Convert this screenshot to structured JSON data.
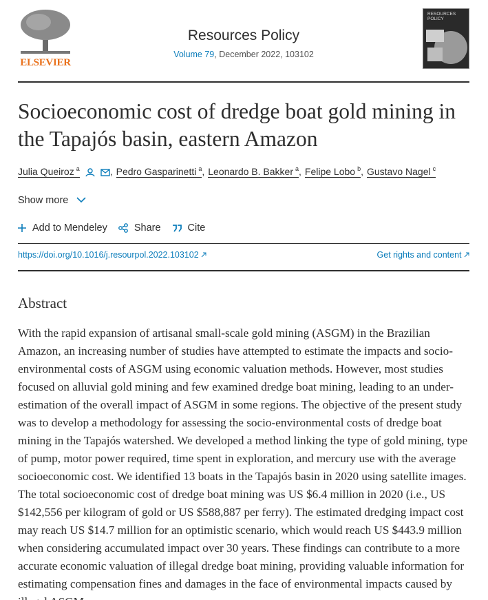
{
  "header": {
    "publisher": "ELSEVIER",
    "journal": "Resources Policy",
    "volume": "Volume 79",
    "issue_info": ", December 2022, 103102",
    "cover_title": "RESOURCES POLICY"
  },
  "article": {
    "title": "Socioeconomic cost of dredge boat gold mining in the Tapajós basin, eastern Amazon",
    "author_separator": ",",
    "authors": [
      {
        "name": "Julia Queiroz",
        "affiliation": "a"
      },
      {
        "name": "Pedro Gasparinetti",
        "affiliation": "a"
      },
      {
        "name": "Leonardo B. Bakker",
        "affiliation": "a"
      },
      {
        "name": "Felipe Lobo",
        "affiliation": "b"
      },
      {
        "name": "Gustavo Nagel",
        "affiliation": "c"
      }
    ],
    "show_more": "Show more",
    "actions": [
      "Add to Mendeley",
      "Share",
      "Cite"
    ],
    "doi": "https://doi.org/10.1016/j.resourpol.2022.103102",
    "rights": "Get rights and content"
  },
  "abstract": {
    "heading": "Abstract",
    "text": "With the rapid expansion of artisanal small-scale gold mining (ASGM) in the Brazilian Amazon, an increasing number of studies have attempted to estimate the impacts and socio-environmental costs of ASGM using economic valuation methods. However, most studies focused on alluvial gold mining and few examined dredge boat mining, leading to an under-estimation of the overall impact of ASGM in some regions. The objective of the present study was to develop a methodology for assessing the socio-environmental costs of dredge boat mining in the Tapajós watershed. We developed a method linking the type of gold mining, type of pump, motor power required, time spent in exploration, and mercury use with the average socioeconomic cost. We identified 13 boats in the Tapajós basin in 2020 using satellite images. The total socioeconomic cost of dredge boat mining was US $6.4 million in 2020 (i.e., US $142,556 per kilogram of gold or US $588,887 per ferry). The estimated dredging impact cost may reach US $14.7 million for an optimistic scenario, which would reach US $443.9 million when considering accumulated impact over 30 years. These findings can contribute to a more accurate economic valuation of illegal dredge boat mining, providing valuable information for estimating compensation fines and damages in the face of environmental impacts caused by illegal ASGM."
  }
}
